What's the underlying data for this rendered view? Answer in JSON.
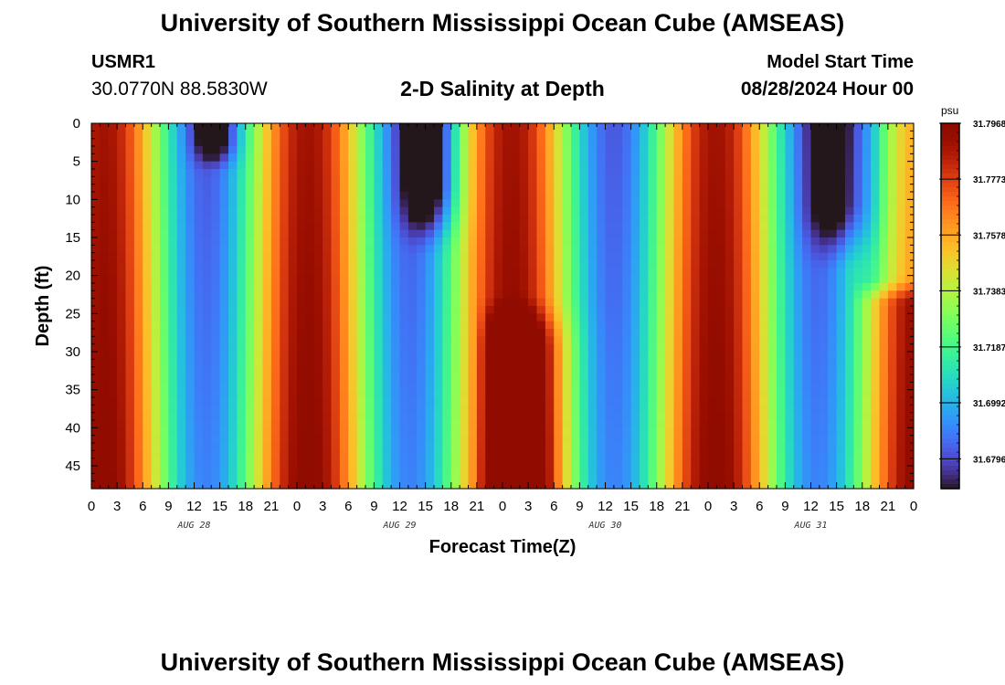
{
  "header": {
    "title": "University of Southern Mississippi Ocean Cube (AMSEAS)",
    "station_id": "USMR1",
    "coordinates": "30.0770N  88.5830W",
    "model_start_label": "Model Start Time",
    "model_start_value": "08/28/2024 Hour 00"
  },
  "footer": {
    "title": "University of Southern Mississippi Ocean Cube (AMSEAS)"
  },
  "chart_data": {
    "type": "heatmap",
    "title": "2-D Salinity at Depth",
    "xlabel": "Forecast Time(Z)",
    "ylabel": "Depth (ft)",
    "x_tick_labels": [
      "0",
      "3",
      "6",
      "9",
      "12",
      "15",
      "18",
      "21",
      "0",
      "3",
      "6",
      "9",
      "12",
      "15",
      "18",
      "21",
      "0",
      "3",
      "6",
      "9",
      "12",
      "15",
      "18",
      "21",
      "0",
      "3",
      "6",
      "9",
      "12",
      "15",
      "18",
      "21",
      "0"
    ],
    "x_hours_range": [
      0,
      96
    ],
    "day_labels": [
      {
        "label": "AUG 28",
        "hour": 12
      },
      {
        "label": "AUG 29",
        "hour": 36
      },
      {
        "label": "AUG 30",
        "hour": 60
      },
      {
        "label": "AUG 31",
        "hour": 84
      }
    ],
    "y_ticks": [
      0,
      5,
      10,
      15,
      20,
      25,
      30,
      35,
      40,
      45
    ],
    "ylim": [
      0,
      48
    ],
    "y_inverted": true,
    "colorbar": {
      "unit": "psu",
      "min": 31.6692,
      "max": 31.7968,
      "tick_labels": [
        "31.7968",
        "31.7773",
        "31.7578",
        "31.7383",
        "31.7187",
        "31.6992",
        "31.6796"
      ],
      "tick_values": [
        31.7968,
        31.7773,
        31.7578,
        31.7383,
        31.7187,
        31.6992,
        31.6796
      ]
    },
    "grid": false
  }
}
